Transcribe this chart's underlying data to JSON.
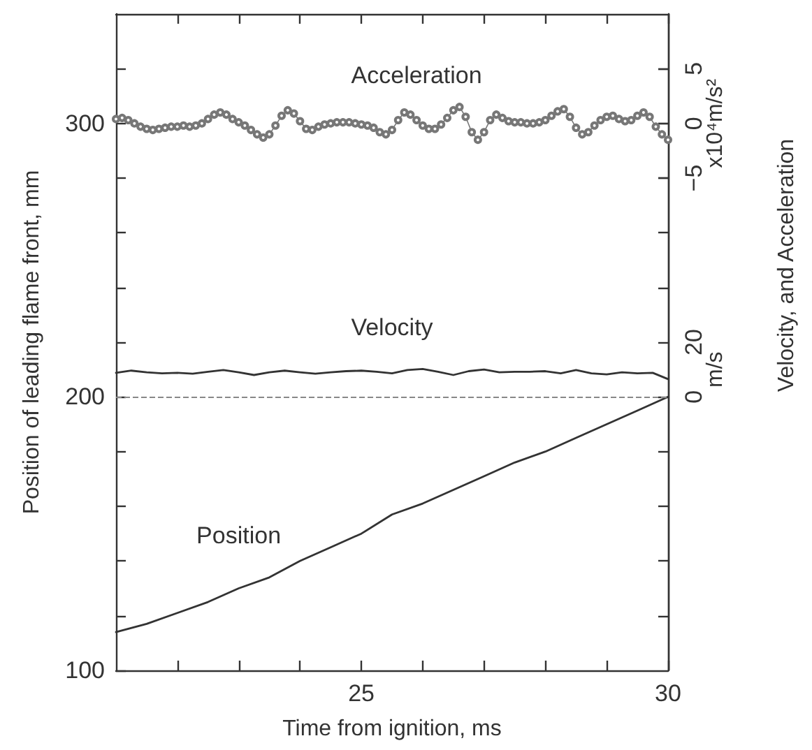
{
  "chart_data": {
    "type": "line",
    "xlabel": "Time from ignition, ms",
    "ylabel": "Position of leading flame front, mm",
    "y2label": "m/s",
    "y3label": "x10⁴m/s²",
    "annotations": [
      "Velocity, and Acceleration"
    ],
    "xlim": [
      21,
      30
    ],
    "xticks": [
      {
        "value": 22,
        "label": null
      },
      {
        "value": 23,
        "label": null
      },
      {
        "value": 24,
        "label": null
      },
      25,
      {
        "value": 26,
        "label": null
      },
      {
        "value": 27,
        "label": null
      },
      {
        "value": 28,
        "label": null
      },
      {
        "value": 29,
        "label": null
      },
      30
    ],
    "ylim": [
      100,
      340
    ],
    "yticks": [
      100,
      {
        "value": 120,
        "label": null
      },
      {
        "value": 140,
        "label": null
      },
      {
        "value": 160,
        "label": null
      },
      {
        "value": 180,
        "label": null
      },
      200,
      {
        "value": 220,
        "label": null
      },
      {
        "value": 240,
        "label": null
      },
      {
        "value": 260,
        "label": null
      },
      {
        "value": 280,
        "label": null
      },
      300,
      {
        "value": 320,
        "label": null
      }
    ],
    "y2lim": [
      -100,
      140
    ],
    "y2ticks": [
      {
        "value": -80,
        "label": null
      },
      {
        "value": -60,
        "label": null
      },
      {
        "value": -40,
        "label": null
      },
      {
        "value": -20,
        "label": null
      },
      0,
      20,
      {
        "value": 40,
        "label": null
      },
      {
        "value": 60,
        "label": null
      },
      {
        "value": 80,
        "label": null
      },
      {
        "value": 100,
        "label": null
      },
      {
        "value": 120,
        "label": null
      }
    ],
    "y3lim": [
      -50,
      10
    ],
    "y3ticks": [
      {
        "value": -5,
        "label": "−5"
      },
      0,
      5
    ],
    "ref_lines": [
      {
        "axis": "y2",
        "value": 0,
        "color": "#888888",
        "line_style": "dashed"
      }
    ],
    "series": [
      {
        "name": "Acceleration",
        "axis": "y3",
        "color": "#777777",
        "marker": "circle",
        "x": [
          21.0,
          21.1,
          21.2,
          21.3,
          21.4,
          21.5,
          21.6,
          21.7,
          21.8,
          21.9,
          22.0,
          22.1,
          22.2,
          22.3,
          22.4,
          22.5,
          22.6,
          22.7,
          22.8,
          22.9,
          23.0,
          23.1,
          23.2,
          23.3,
          23.4,
          23.5,
          23.6,
          23.7,
          23.8,
          23.9,
          24.0,
          24.1,
          24.2,
          24.3,
          24.4,
          24.5,
          24.6,
          24.7,
          24.8,
          24.9,
          25.0,
          25.1,
          25.2,
          25.3,
          25.4,
          25.5,
          25.6,
          25.7,
          25.8,
          25.9,
          26.0,
          26.1,
          26.2,
          26.3,
          26.4,
          26.5,
          26.6,
          26.7,
          26.8,
          26.9,
          27.0,
          27.1,
          27.2,
          27.3,
          27.4,
          27.5,
          27.6,
          27.7,
          27.8,
          27.9,
          28.0,
          28.1,
          28.2,
          28.3,
          28.4,
          28.5,
          28.6,
          28.7,
          28.8,
          28.9,
          29.0,
          29.1,
          29.2,
          29.3,
          29.4,
          29.5,
          29.6,
          29.7,
          29.8,
          29.9,
          30.0
        ],
        "values": [
          0.4,
          0.5,
          0.3,
          0,
          -0.3,
          -0.5,
          -0.6,
          -0.5,
          -0.4,
          -0.3,
          -0.3,
          -0.2,
          -0.3,
          -0.2,
          0,
          0.4,
          0.8,
          1.0,
          0.8,
          0.4,
          0.1,
          -0.2,
          -0.6,
          -1.0,
          -1.3,
          -1.0,
          -0.2,
          0.7,
          1.2,
          0.9,
          0.2,
          -0.5,
          -0.6,
          -0.3,
          -0.1,
          0,
          0.1,
          0.1,
          0.1,
          0,
          -0.1,
          -0.2,
          -0.4,
          -0.8,
          -1.0,
          -0.6,
          0.3,
          1.0,
          0.8,
          0.3,
          -0.2,
          -0.5,
          -0.5,
          -0.1,
          0.5,
          1.2,
          1.5,
          0.6,
          -0.8,
          -1.5,
          -0.8,
          0.3,
          0.8,
          0.5,
          0.2,
          0.1,
          0.1,
          0,
          0,
          0.1,
          0.3,
          0.7,
          1.1,
          1.3,
          0.6,
          -0.4,
          -1.0,
          -0.8,
          -0.2,
          0.3,
          0.6,
          0.7,
          0.4,
          0.2,
          0.3,
          0.7,
          1.0,
          0.6,
          -0.3,
          -1.0,
          -1.5
        ]
      },
      {
        "name": "Velocity",
        "axis": "y2",
        "color": "#333333",
        "marker": "none",
        "x": [
          21,
          21.25,
          21.5,
          21.75,
          22,
          22.25,
          22.5,
          22.75,
          23,
          23.25,
          23.5,
          23.75,
          24,
          24.25,
          24.5,
          24.75,
          25,
          25.25,
          25.5,
          25.75,
          26,
          26.25,
          26.5,
          26.75,
          27,
          27.25,
          27.5,
          27.75,
          28,
          28.25,
          28.5,
          28.75,
          29,
          29.25,
          29.5,
          29.75,
          30
        ],
        "values": [
          8.8,
          9.6,
          9.0,
          8.6,
          8.8,
          8.5,
          9.2,
          9.8,
          9.0,
          8.0,
          9.0,
          9.6,
          9.0,
          8.5,
          9.0,
          9.4,
          9.6,
          9.2,
          8.6,
          9.8,
          10.2,
          9.2,
          8.0,
          9.4,
          10.0,
          9.0,
          9.2,
          9.2,
          9.4,
          8.6,
          9.8,
          8.6,
          8.2,
          9.0,
          8.6,
          8.8,
          6.5
        ]
      },
      {
        "name": "Position",
        "color": "#333333",
        "marker": "none",
        "x": [
          21,
          21.5,
          22,
          22.5,
          23,
          23.5,
          24,
          24.5,
          25,
          25.5,
          26,
          26.5,
          27,
          27.5,
          28,
          28.5,
          29,
          29.5,
          30
        ],
        "values": [
          114,
          117,
          121,
          125,
          130,
          134,
          140,
          145,
          150,
          157,
          161,
          166,
          171,
          176,
          180,
          185,
          190,
          195,
          200
        ]
      }
    ]
  }
}
